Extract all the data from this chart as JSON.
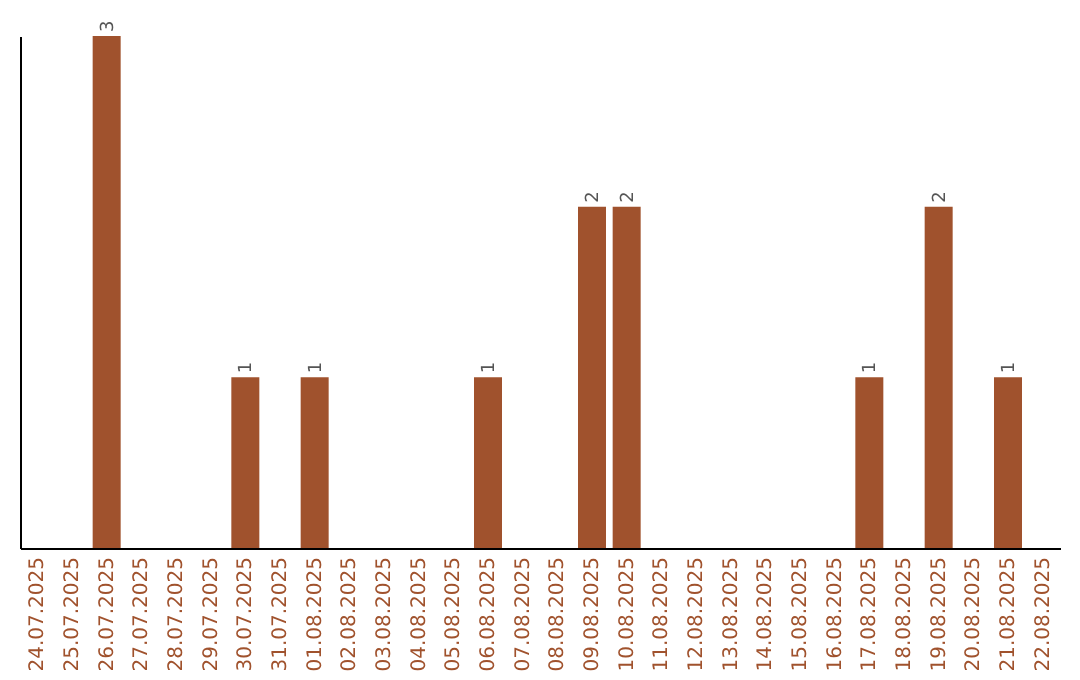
{
  "chart_data": {
    "type": "bar",
    "categories": [
      "24.07.2025",
      "25.07.2025",
      "26.07.2025",
      "27.07.2025",
      "28.07.2025",
      "29.07.2025",
      "30.07.2025",
      "31.07.2025",
      "01.08.2025",
      "02.08.2025",
      "03.08.2025",
      "04.08.2025",
      "05.08.2025",
      "06.08.2025",
      "07.08.2025",
      "08.08.2025",
      "09.08.2025",
      "10.08.2025",
      "11.08.2025",
      "12.08.2025",
      "13.08.2025",
      "14.08.2025",
      "15.08.2025",
      "16.08.2025",
      "17.08.2025",
      "18.08.2025",
      "19.08.2025",
      "20.08.2025",
      "21.08.2025",
      "22.08.2025"
    ],
    "values": [
      0,
      0,
      3,
      0,
      0,
      0,
      1,
      0,
      1,
      0,
      0,
      0,
      0,
      1,
      0,
      0,
      2,
      2,
      0,
      0,
      0,
      0,
      0,
      0,
      1,
      0,
      2,
      0,
      1,
      0
    ],
    "value_labels": [
      null,
      null,
      "3",
      null,
      null,
      null,
      "1",
      null,
      "1",
      null,
      null,
      null,
      null,
      "1",
      null,
      null,
      "2",
      "2",
      null,
      null,
      null,
      null,
      null,
      null,
      "1",
      null,
      "2",
      null,
      "1",
      null
    ],
    "color": "#a0522d",
    "ylim": [
      0,
      3
    ],
    "tick_labels": "x"
  }
}
